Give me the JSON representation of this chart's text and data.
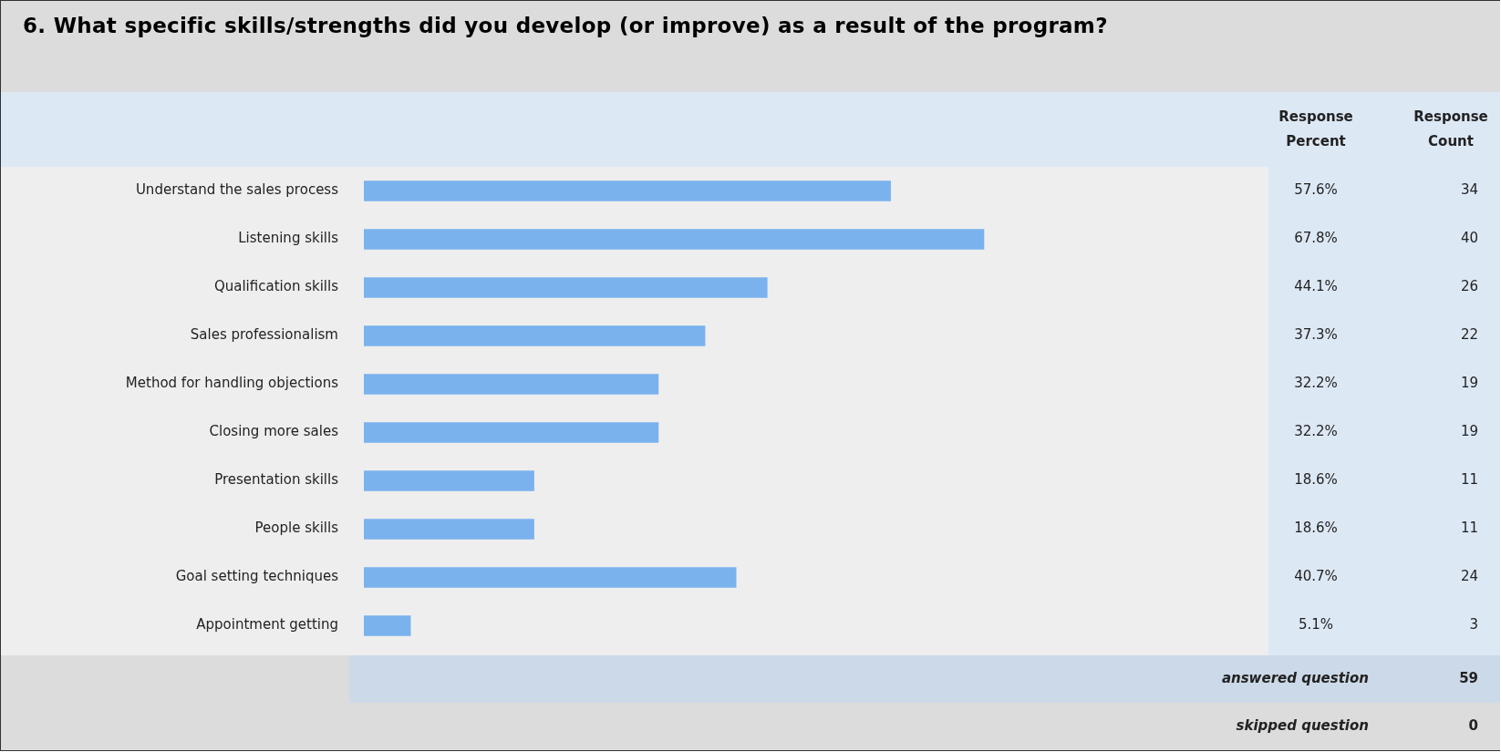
{
  "chart_data": {
    "type": "bar",
    "orientation": "horizontal",
    "title": "6. What specific skills/strengths did you develop (or improve) as a result of the program?",
    "categories": [
      "Understand the sales process",
      "Listening skills",
      "Qualification skills",
      "Sales professionalism",
      "Method for handling objections",
      "Closing more sales",
      "Presentation skills",
      "People skills",
      "Goal setting techniques",
      "Appointment getting"
    ],
    "values": [
      57.6,
      67.8,
      44.1,
      37.3,
      32.2,
      32.2,
      18.6,
      18.6,
      40.7,
      5.1
    ],
    "value_labels": [
      "57.6%",
      "67.8%",
      "44.1%",
      "37.3%",
      "32.2%",
      "32.2%",
      "18.6%",
      "18.6%",
      "40.7%",
      "5.1%"
    ],
    "color": "#7ab2ee",
    "tick_labels": "y",
    "grid": false,
    "legend": false,
    "annotations": [
      "Response Percent",
      "Response Count",
      "answered question",
      "59",
      "skipped question",
      "0",
      "34",
      "40",
      "26",
      "22",
      "19",
      "19",
      "11",
      "11",
      "24",
      "3"
    ]
  }
}
